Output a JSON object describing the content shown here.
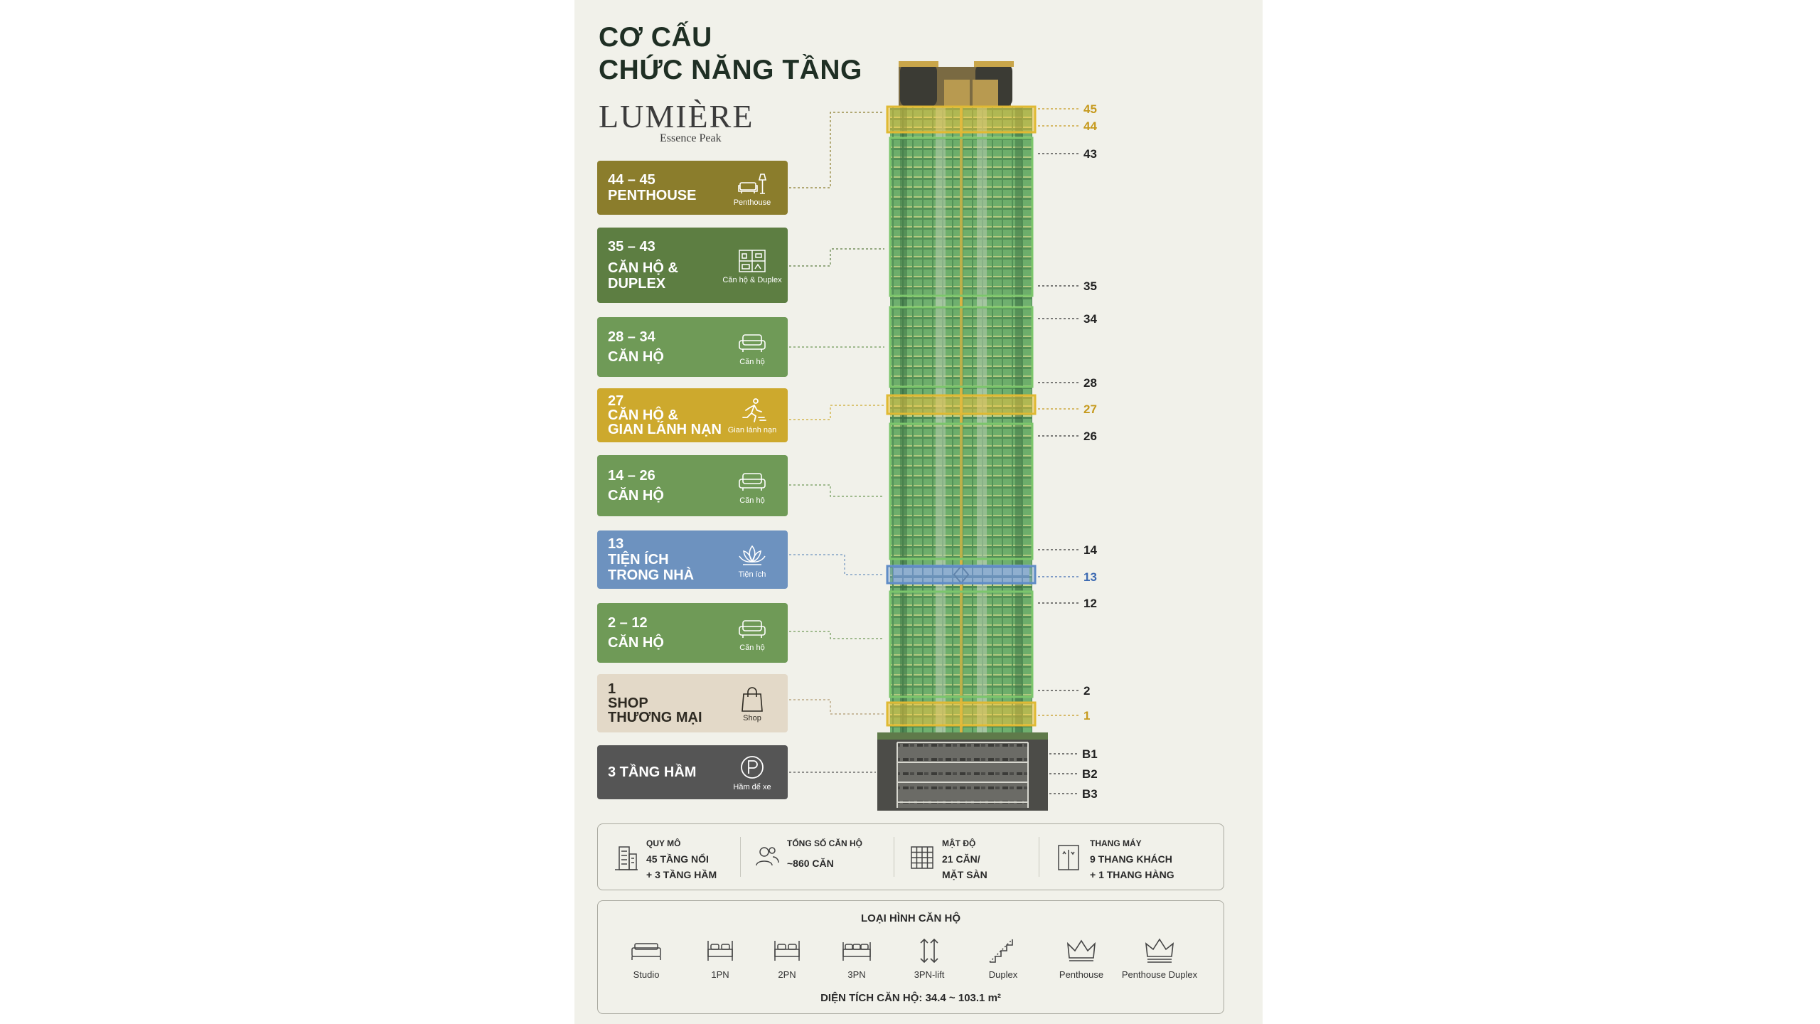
{
  "title_line1": "CƠ CẤU",
  "title_line2": "CHỨC NĂNG TẦNG",
  "brand": {
    "name": "LUMIÈRE",
    "tagline": "Essence Peak"
  },
  "colors": {
    "penthouse": "#8b7d2c",
    "duplex": "#5d7e42",
    "apartment": "#6f9a57",
    "refuge": "#cda92d",
    "amenity": "#6d92bf",
    "shop": "#e3d9c8",
    "basement": "#555555"
  },
  "cards": [
    {
      "lines": [
        "44 – 45",
        "PENTHOUSE"
      ],
      "icon": "penthouse-sofa-lamp-icon",
      "caption": "Penthouse"
    },
    {
      "lines": [
        "35 – 43",
        "CĂN HỘ &",
        "DUPLEX"
      ],
      "icon": "duplex-apartment-icon",
      "caption": "Căn hộ & Duplex"
    },
    {
      "lines": [
        "28 – 34",
        "CĂN HỘ"
      ],
      "icon": "sofa-icon",
      "caption": "Căn hộ"
    },
    {
      "lines": [
        "27",
        "CĂN HỘ &",
        "GIAN LÁNH NẠN"
      ],
      "icon": "running-person-icon",
      "caption": "Gian lánh nạn"
    },
    {
      "lines": [
        "14 – 26",
        "CĂN HỘ"
      ],
      "icon": "sofa-icon",
      "caption": "Căn hộ"
    },
    {
      "lines": [
        "13",
        "TIỆN ÍCH",
        "TRONG NHÀ"
      ],
      "icon": "lotus-icon",
      "caption": "Tiện ích"
    },
    {
      "lines": [
        "2 – 12",
        "CĂN HỘ"
      ],
      "icon": "sofa-icon",
      "caption": "Căn hộ"
    },
    {
      "lines": [
        "1",
        "SHOP",
        "THƯƠNG MẠI"
      ],
      "icon": "shopping-bag-icon",
      "caption": "Shop"
    },
    {
      "lines": [
        "3 TẦNG HẦM"
      ],
      "icon": "parking-icon",
      "caption": "Hầm để xe"
    }
  ],
  "floor_labels": [
    "45",
    "44",
    "43",
    "35",
    "34",
    "28",
    "27",
    "26",
    "14",
    "13",
    "12",
    "2",
    "1",
    "B1",
    "B2",
    "B3"
  ],
  "stats": [
    {
      "icon": "building-icon",
      "heading": "QUY MÔ",
      "line1": "45 TẦNG NỔI",
      "line2": "+ 3 TẦNG HẦM"
    },
    {
      "icon": "people-icon",
      "heading": "TỔNG SỐ CĂN HỘ",
      "line1": "~860 CĂN",
      "line2": ""
    },
    {
      "icon": "grid-density-icon",
      "heading": "MẬT ĐỘ",
      "line1": "21 CĂN/",
      "line2": "MẶT SÀN"
    },
    {
      "icon": "elevator-icon",
      "heading": "THANG MÁY",
      "line1": "9 THANG KHÁCH",
      "line2": "+ 1 THANG HÀNG"
    }
  ],
  "unit_types": {
    "heading": "LOẠI HÌNH CĂN HỘ",
    "items": [
      {
        "label": "Studio",
        "icon": "studio-bed-icon"
      },
      {
        "label": "1PN",
        "icon": "bed-icon"
      },
      {
        "label": "2PN",
        "icon": "bed-icon"
      },
      {
        "label": "3PN",
        "icon": "bed-icon"
      },
      {
        "label": "3PN-lift",
        "icon": "lift-arrows-icon"
      },
      {
        "label": "Duplex",
        "icon": "stairs-icon"
      },
      {
        "label": "Penthouse",
        "icon": "crown-icon"
      },
      {
        "label": "Penthouse Duplex",
        "icon": "crown-double-icon"
      }
    ],
    "area": "DIỆN TÍCH CĂN HỘ:  34.4 ~ 103.1 m²"
  }
}
